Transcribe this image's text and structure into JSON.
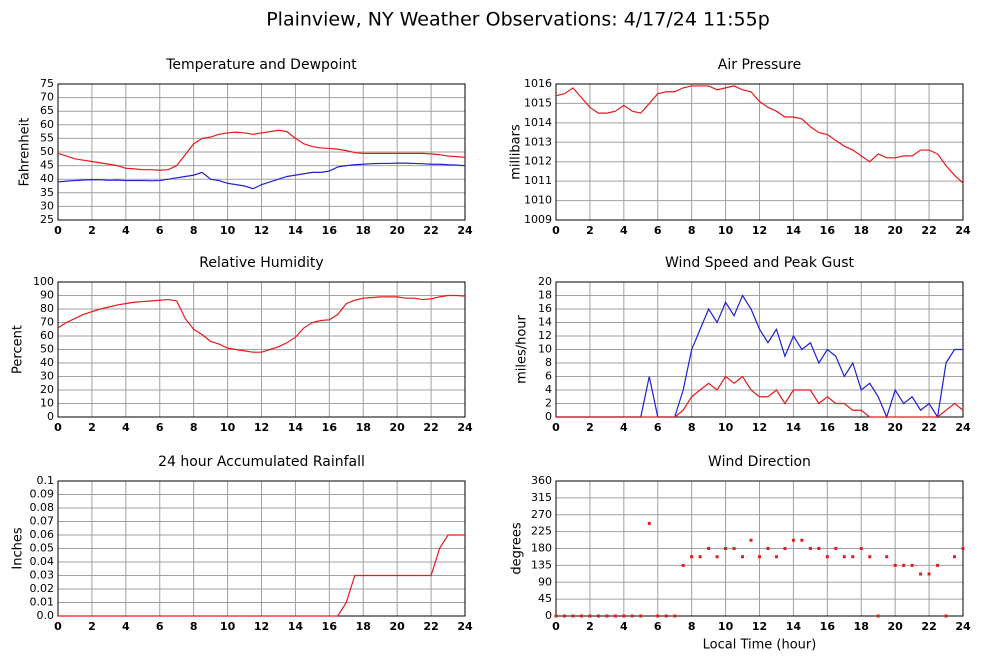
{
  "title": "Plainview, NY Weather Observations: 4/17/24 11:55p",
  "chart_data": [
    {
      "type": "line",
      "title": "Temperature and Dewpoint",
      "ylabel": "Fahrenheit",
      "x": [
        0,
        0.5,
        1,
        1.5,
        2,
        2.5,
        3,
        3.5,
        4,
        4.5,
        5,
        5.5,
        6,
        6.5,
        7,
        7.5,
        8,
        8.5,
        9,
        9.5,
        10,
        10.5,
        11,
        11.5,
        12,
        12.5,
        13,
        13.5,
        14,
        14.5,
        15,
        15.5,
        16,
        16.5,
        17,
        17.5,
        18,
        18.5,
        19,
        19.5,
        20,
        20.5,
        21,
        21.5,
        22,
        22.5,
        23,
        23.5,
        24
      ],
      "series": [
        {
          "color": "#e41a1c",
          "values": [
            49.5,
            48.5,
            47.5,
            47,
            46.5,
            46,
            45.5,
            45,
            44,
            43.8,
            43.5,
            43.5,
            43.3,
            43.5,
            45,
            49,
            53,
            55,
            55.5,
            56.5,
            57,
            57.3,
            57,
            56.5,
            57,
            57.5,
            58,
            57.5,
            55,
            53,
            52,
            51.5,
            51.3,
            51,
            50.5,
            49.8,
            49.5,
            49.5,
            49.5,
            49.5,
            49.5,
            49.5,
            49.5,
            49.5,
            49.3,
            49,
            48.5,
            48.3,
            48
          ]
        },
        {
          "color": "#1f1fd6",
          "values": [
            39,
            39.3,
            39.5,
            39.7,
            39.8,
            39.8,
            39.6,
            39.7,
            39.5,
            39.5,
            39.5,
            39.4,
            39.5,
            40,
            40.5,
            41,
            41.5,
            42.5,
            40,
            39.5,
            38.5,
            38,
            37.5,
            36.5,
            38,
            39,
            40,
            41,
            41.5,
            42,
            42.5,
            42.5,
            43,
            44.5,
            45,
            45.3,
            45.5,
            45.7,
            45.8,
            45.8,
            45.9,
            45.9,
            45.8,
            45.7,
            45.5,
            45.5,
            45.3,
            45.2,
            45
          ]
        }
      ],
      "xlim": [
        0,
        24
      ],
      "xticks": [
        0,
        2,
        4,
        6,
        8,
        10,
        12,
        14,
        16,
        18,
        20,
        22,
        24
      ],
      "ylim": [
        25,
        75
      ],
      "yticks": [
        25,
        30,
        35,
        40,
        45,
        50,
        55,
        60,
        65,
        70,
        75
      ],
      "grid": true
    },
    {
      "type": "line",
      "title": "Air Pressure",
      "ylabel": "millibars",
      "x": [
        0,
        0.5,
        1,
        1.5,
        2,
        2.5,
        3,
        3.5,
        4,
        4.5,
        5,
        5.5,
        6,
        6.5,
        7,
        7.5,
        8,
        8.5,
        9,
        9.5,
        10,
        10.5,
        11,
        11.5,
        12,
        12.5,
        13,
        13.5,
        14,
        14.5,
        15,
        15.5,
        16,
        16.5,
        17,
        17.5,
        18,
        18.5,
        19,
        19.5,
        20,
        20.5,
        21,
        21.5,
        22,
        22.5,
        23,
        23.5,
        24
      ],
      "series": [
        {
          "color": "#e41a1c",
          "values": [
            1015.4,
            1015.5,
            1015.8,
            1015.3,
            1014.8,
            1014.5,
            1014.5,
            1014.6,
            1014.9,
            1014.6,
            1014.5,
            1015,
            1015.5,
            1015.6,
            1015.6,
            1015.8,
            1015.9,
            1015.9,
            1015.9,
            1015.7,
            1015.8,
            1015.9,
            1015.7,
            1015.6,
            1015.1,
            1014.8,
            1014.6,
            1014.3,
            1014.3,
            1014.2,
            1013.8,
            1013.5,
            1013.4,
            1013.1,
            1012.8,
            1012.6,
            1012.3,
            1012,
            1012.4,
            1012.2,
            1012.2,
            1012.3,
            1012.3,
            1012.6,
            1012.6,
            1012.4,
            1011.8,
            1011.3,
            1010.9
          ]
        }
      ],
      "xlim": [
        0,
        24
      ],
      "xticks": [
        0,
        2,
        4,
        6,
        8,
        10,
        12,
        14,
        16,
        18,
        20,
        22,
        24
      ],
      "ylim": [
        1009,
        1016
      ],
      "yticks": [
        1009,
        1010,
        1011,
        1012,
        1013,
        1014,
        1015,
        1016
      ],
      "grid": true
    },
    {
      "type": "line",
      "title": "Relative Humidity",
      "ylabel": "Percent",
      "x": [
        0,
        0.5,
        1,
        1.5,
        2,
        2.5,
        3,
        3.5,
        4,
        4.5,
        5,
        5.5,
        6,
        6.5,
        7,
        7.5,
        8,
        8.5,
        9,
        9.5,
        10,
        10.5,
        11,
        11.5,
        12,
        12.5,
        13,
        13.5,
        14,
        14.5,
        15,
        15.5,
        16,
        16.5,
        17,
        17.5,
        18,
        18.5,
        19,
        19.5,
        20,
        20.5,
        21,
        21.5,
        22,
        22.5,
        23,
        23.5,
        24
      ],
      "series": [
        {
          "color": "#e41a1c",
          "values": [
            66,
            70,
            73,
            76,
            78,
            80,
            81.5,
            83,
            84,
            85,
            85.5,
            86,
            86.5,
            87,
            86,
            73,
            65,
            61,
            56,
            54,
            51,
            50,
            49,
            48,
            48,
            50,
            52,
            55,
            59,
            66,
            70,
            71.5,
            72,
            76,
            84,
            86.5,
            88,
            88.5,
            89,
            89,
            89,
            88,
            88,
            87,
            87.5,
            89,
            90,
            90,
            89.5
          ]
        }
      ],
      "xlim": [
        0,
        24
      ],
      "xticks": [
        0,
        2,
        4,
        6,
        8,
        10,
        12,
        14,
        16,
        18,
        20,
        22,
        24
      ],
      "ylim": [
        0,
        100
      ],
      "yticks": [
        0,
        10,
        20,
        30,
        40,
        50,
        60,
        70,
        80,
        90,
        100
      ],
      "grid": true
    },
    {
      "type": "line",
      "title": "Wind Speed and Peak Gust",
      "ylabel": "miles/hour",
      "x": [
        0,
        0.5,
        1,
        1.5,
        2,
        2.5,
        3,
        3.5,
        4,
        4.5,
        5,
        5.5,
        6,
        6.5,
        7,
        7.5,
        8,
        8.5,
        9,
        9.5,
        10,
        10.5,
        11,
        11.5,
        12,
        12.5,
        13,
        13.5,
        14,
        14.5,
        15,
        15.5,
        16,
        16.5,
        17,
        17.5,
        18,
        18.5,
        19,
        19.5,
        20,
        20.5,
        21,
        21.5,
        22,
        22.5,
        23,
        23.5,
        24
      ],
      "series": [
        {
          "color": "#1f1fd6",
          "values": [
            0,
            0,
            0,
            0,
            0,
            0,
            0,
            0,
            0,
            0,
            0,
            6,
            0,
            0,
            0,
            4,
            10,
            13,
            16,
            14,
            17,
            15,
            18,
            16,
            13,
            11,
            13,
            9,
            12,
            10,
            11,
            8,
            10,
            9,
            6,
            8,
            4,
            5,
            3,
            0,
            4,
            2,
            3,
            1,
            2,
            0,
            8,
            10,
            10
          ]
        },
        {
          "color": "#e41a1c",
          "values": [
            0,
            0,
            0,
            0,
            0,
            0,
            0,
            0,
            0,
            0,
            0,
            0,
            0,
            0,
            0,
            1,
            3,
            4,
            5,
            4,
            6,
            5,
            6,
            4,
            3,
            3,
            4,
            2,
            4,
            4,
            4,
            2,
            3,
            2,
            2,
            1,
            1,
            0,
            0,
            0,
            0,
            0,
            0,
            0,
            0,
            0,
            1,
            2,
            1
          ]
        }
      ],
      "xlim": [
        0,
        24
      ],
      "xticks": [
        0,
        2,
        4,
        6,
        8,
        10,
        12,
        14,
        16,
        18,
        20,
        22,
        24
      ],
      "ylim": [
        0,
        20
      ],
      "yticks": [
        0,
        2,
        4,
        6,
        8,
        10,
        12,
        14,
        16,
        18,
        20
      ],
      "grid": true
    },
    {
      "type": "line",
      "title": "24 hour Accumulated Rainfall",
      "ylabel": "Inches",
      "x": [
        0,
        0.5,
        1,
        1.5,
        2,
        2.5,
        3,
        3.5,
        4,
        4.5,
        5,
        5.5,
        6,
        6.5,
        7,
        7.5,
        8,
        8.5,
        9,
        9.5,
        10,
        10.5,
        11,
        11.5,
        12,
        12.5,
        13,
        13.5,
        14,
        14.5,
        15,
        15.5,
        16,
        16.5,
        17,
        17.5,
        18,
        18.5,
        19,
        19.5,
        20,
        20.5,
        21,
        21.5,
        22,
        22.5,
        23,
        23.5,
        24
      ],
      "series": [
        {
          "color": "#e41a1c",
          "values": [
            0,
            0,
            0,
            0,
            0,
            0,
            0,
            0,
            0,
            0,
            0,
            0,
            0,
            0,
            0,
            0,
            0,
            0,
            0,
            0,
            0,
            0,
            0,
            0,
            0,
            0,
            0,
            0,
            0,
            0,
            0,
            0,
            0,
            0,
            0.01,
            0.03,
            0.03,
            0.03,
            0.03,
            0.03,
            0.03,
            0.03,
            0.03,
            0.03,
            0.03,
            0.05,
            0.06,
            0.06,
            0.06
          ]
        }
      ],
      "xlim": [
        0,
        24
      ],
      "xticks": [
        0,
        2,
        4,
        6,
        8,
        10,
        12,
        14,
        16,
        18,
        20,
        22,
        24
      ],
      "ylim": [
        0,
        0.1
      ],
      "yticks": [
        {
          "value": 0,
          "label": "0.0"
        },
        0.01,
        0.02,
        0.03,
        0.04,
        0.05,
        0.06,
        0.07,
        0.08,
        0.09,
        0.1
      ],
      "grid": true
    },
    {
      "type": "scatter",
      "title": "Wind Direction",
      "ylabel": "degrees",
      "xlabel": "Local Time (hour)",
      "x": [
        0,
        0.5,
        1,
        1.5,
        2,
        2.5,
        3,
        3.5,
        4,
        4.5,
        5,
        5.5,
        6,
        6.5,
        7,
        7.5,
        8,
        8.5,
        9,
        9.5,
        10,
        10.5,
        11,
        11.5,
        12,
        12.5,
        13,
        13.5,
        14,
        14.5,
        15,
        15.5,
        16,
        16.5,
        17,
        17.5,
        18,
        18.5,
        19,
        19.5,
        20,
        20.5,
        21,
        21.5,
        22,
        22.5,
        23,
        23.5,
        24
      ],
      "series": [
        {
          "color": "#e41a1c",
          "values": [
            0,
            0,
            0,
            0,
            0,
            0,
            0,
            0,
            0,
            0,
            0,
            247,
            0,
            0,
            0,
            135,
            158,
            158,
            180,
            158,
            180,
            180,
            158,
            202,
            158,
            180,
            158,
            180,
            202,
            202,
            180,
            180,
            158,
            180,
            158,
            158,
            180,
            158,
            0,
            158,
            135,
            135,
            135,
            112,
            112,
            135,
            0,
            158,
            180
          ]
        }
      ],
      "xlim": [
        0,
        24
      ],
      "xticks": [
        0,
        2,
        4,
        6,
        8,
        10,
        12,
        14,
        16,
        18,
        20,
        22,
        24
      ],
      "ylim": [
        0,
        360
      ],
      "yticks": [
        0,
        45,
        90,
        135,
        180,
        225,
        270,
        315,
        360
      ],
      "grid": true
    }
  ]
}
